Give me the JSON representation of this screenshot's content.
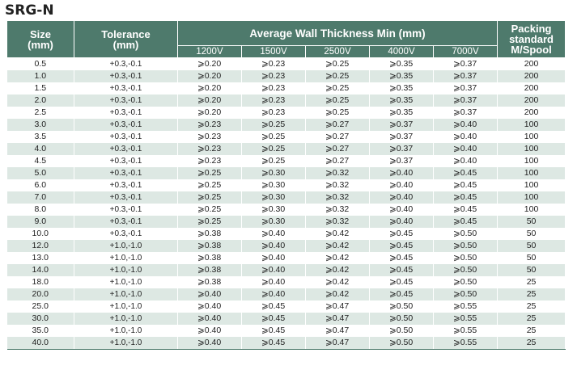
{
  "title": "SRG-N",
  "headers": {
    "size": "Size",
    "size_unit": "(mm)",
    "tolerance": "Tolerance",
    "tolerance_unit": "(mm)",
    "wall": "Average Wall Thickness Min (mm)",
    "voltages": [
      "1200V",
      "1500V",
      "2500V",
      "4000V",
      "7000V"
    ],
    "packing_1": "Packing",
    "packing_2": "standard",
    "packing_3": "M/Spool"
  },
  "rows": [
    {
      "size": "0.5",
      "tol": "+0.3,-0.1",
      "v": [
        "⩾0.20",
        "⩾0.23",
        "⩾0.25",
        "⩾0.35",
        "⩾0.37"
      ],
      "pack": "200"
    },
    {
      "size": "1.0",
      "tol": "+0.3,-0.1",
      "v": [
        "⩾0.20",
        "⩾0.23",
        "⩾0.25",
        "⩾0.35",
        "⩾0.37"
      ],
      "pack": "200"
    },
    {
      "size": "1.5",
      "tol": "+0.3,-0.1",
      "v": [
        "⩾0.20",
        "⩾0.23",
        "⩾0.25",
        "⩾0.35",
        "⩾0.37"
      ],
      "pack": "200"
    },
    {
      "size": "2.0",
      "tol": "+0.3,-0.1",
      "v": [
        "⩾0.20",
        "⩾0.23",
        "⩾0.25",
        "⩾0.35",
        "⩾0.37"
      ],
      "pack": "200"
    },
    {
      "size": "2.5",
      "tol": "+0.3,-0.1",
      "v": [
        "⩾0.20",
        "⩾0.23",
        "⩾0.25",
        "⩾0.35",
        "⩾0.37"
      ],
      "pack": "200"
    },
    {
      "size": "3.0",
      "tol": "+0.3,-0.1",
      "v": [
        "⩾0.23",
        "⩾0.25",
        "⩾0.27",
        "⩾0.37",
        "⩾0.40"
      ],
      "pack": "100"
    },
    {
      "size": "3.5",
      "tol": "+0.3,-0.1",
      "v": [
        "⩾0.23",
        "⩾0.25",
        "⩾0.27",
        "⩾0.37",
        "⩾0.40"
      ],
      "pack": "100"
    },
    {
      "size": "4.0",
      "tol": "+0.3,-0.1",
      "v": [
        "⩾0.23",
        "⩾0.25",
        "⩾0.27",
        "⩾0.37",
        "⩾0.40"
      ],
      "pack": "100"
    },
    {
      "size": "4.5",
      "tol": "+0.3,-0.1",
      "v": [
        "⩾0.23",
        "⩾0.25",
        "⩾0.27",
        "⩾0.37",
        "⩾0.40"
      ],
      "pack": "100"
    },
    {
      "size": "5.0",
      "tol": "+0.3,-0.1",
      "v": [
        "⩾0.25",
        "⩾0.30",
        "⩾0.32",
        "⩾0.40",
        "⩾0.45"
      ],
      "pack": "100"
    },
    {
      "size": "6.0",
      "tol": "+0.3,-0.1",
      "v": [
        "⩾0.25",
        "⩾0.30",
        "⩾0.32",
        "⩾0.40",
        "⩾0.45"
      ],
      "pack": "100"
    },
    {
      "size": "7.0",
      "tol": "+0.3,-0.1",
      "v": [
        "⩾0.25",
        "⩾0.30",
        "⩾0.32",
        "⩾0.40",
        "⩾0.45"
      ],
      "pack": "100"
    },
    {
      "size": "8.0",
      "tol": "+0.3,-0.1",
      "v": [
        "⩾0.25",
        "⩾0.30",
        "⩾0.32",
        "⩾0.40",
        "⩾0.45"
      ],
      "pack": "100"
    },
    {
      "size": "9.0",
      "tol": "+0.3,-0.1",
      "v": [
        "⩾0.25",
        "⩾0.30",
        "⩾0.32",
        "⩾0.40",
        "⩾0.45"
      ],
      "pack": "50"
    },
    {
      "size": "10.0",
      "tol": "+0.3,-0.1",
      "v": [
        "⩾0.38",
        "⩾0.40",
        "⩾0.42",
        "⩾0.45",
        "⩾0.50"
      ],
      "pack": "50"
    },
    {
      "size": "12.0",
      "tol": "+1.0,-1.0",
      "v": [
        "⩾0.38",
        "⩾0.40",
        "⩾0.42",
        "⩾0.45",
        "⩾0.50"
      ],
      "pack": "50"
    },
    {
      "size": "13.0",
      "tol": "+1.0,-1.0",
      "v": [
        "⩾0.38",
        "⩾0.40",
        "⩾0.42",
        "⩾0.45",
        "⩾0.50"
      ],
      "pack": "50"
    },
    {
      "size": "14.0",
      "tol": "+1.0,-1.0",
      "v": [
        "⩾0.38",
        "⩾0.40",
        "⩾0.42",
        "⩾0.45",
        "⩾0.50"
      ],
      "pack": "50"
    },
    {
      "size": "18.0",
      "tol": "+1.0,-1.0",
      "v": [
        "⩾0.38",
        "⩾0.40",
        "⩾0.42",
        "⩾0.45",
        "⩾0.50"
      ],
      "pack": "25"
    },
    {
      "size": "20.0",
      "tol": "+1.0,-1.0",
      "v": [
        "⩾0.40",
        "⩾0.40",
        "⩾0.42",
        "⩾0.45",
        "⩾0.50"
      ],
      "pack": "25"
    },
    {
      "size": "25.0",
      "tol": "+1.0,-1.0",
      "v": [
        "⩾0.40",
        "⩾0.45",
        "⩾0.47",
        "⩾0.50",
        "⩾0.55"
      ],
      "pack": "25"
    },
    {
      "size": "30.0",
      "tol": "+1.0,-1.0",
      "v": [
        "⩾0.40",
        "⩾0.45",
        "⩾0.47",
        "⩾0.50",
        "⩾0.55"
      ],
      "pack": "25"
    },
    {
      "size": "35.0",
      "tol": "+1.0,-1.0",
      "v": [
        "⩾0.40",
        "⩾0.45",
        "⩾0.47",
        "⩾0.50",
        "⩾0.55"
      ],
      "pack": "25"
    },
    {
      "size": "40.0",
      "tol": "+1.0,-1.0",
      "v": [
        "⩾0.40",
        "⩾0.45",
        "⩾0.47",
        "⩾0.50",
        "⩾0.55"
      ],
      "pack": "25"
    }
  ],
  "colors": {
    "header_bg": "#4e7a6c",
    "row_alt": "#dde8e3",
    "text": "#222222"
  }
}
